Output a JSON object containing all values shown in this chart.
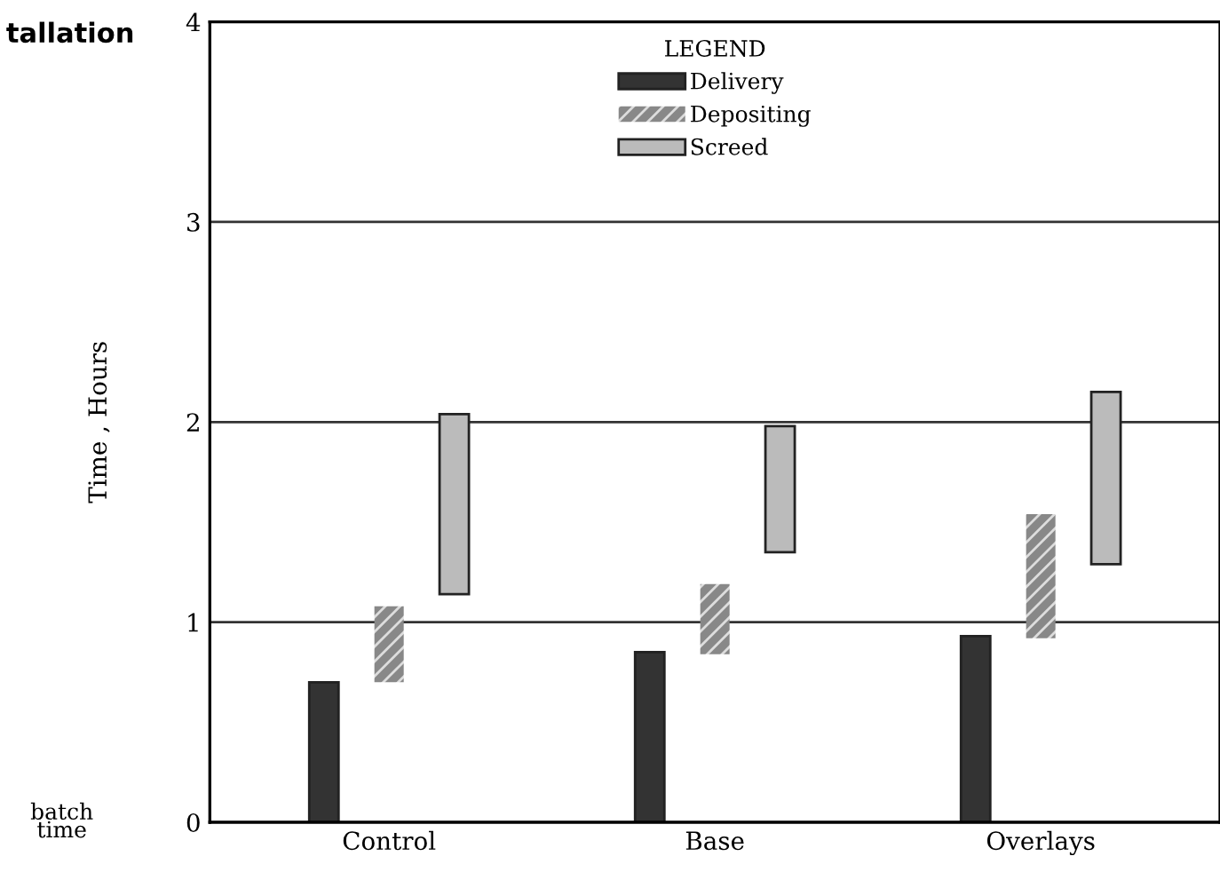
{
  "chart_data": {
    "type": "bar",
    "title": "tallation",
    "ylabel": "Time , Hours",
    "legend_title": "LEGEND",
    "categories": [
      "Control",
      "Base",
      "Overlays"
    ],
    "series": [
      {
        "name": "Delivery",
        "color": "#333333",
        "values": [
          0.7,
          0.85,
          0.93
        ],
        "base": [
          0,
          0,
          0
        ]
      },
      {
        "name": "Depositing",
        "color": "#888888",
        "values": [
          0.38,
          0.35,
          0.62
        ],
        "base": [
          0.7,
          0.84,
          0.92
        ]
      },
      {
        "name": "Screed",
        "color": "#bbbbbb",
        "values": [
          0.9,
          0.63,
          0.86
        ],
        "base": [
          1.14,
          1.35,
          1.29
        ]
      }
    ],
    "ylim": [
      0,
      4
    ],
    "yticks": [
      0,
      1,
      2,
      3,
      4
    ],
    "grid": "y",
    "legend": "top",
    "annotations": [
      "batch\ntime"
    ]
  }
}
